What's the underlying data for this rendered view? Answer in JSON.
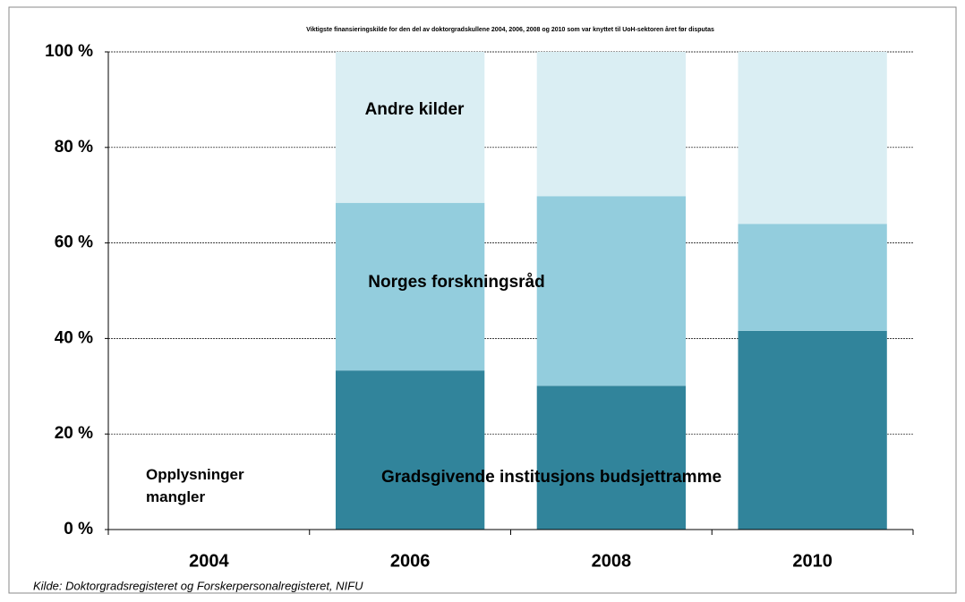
{
  "chart_data": {
    "type": "stacked_bar",
    "title": "Viktigste finansieringskilde for den del av doktorgradskullene 2004, 2006, 2008 og 2010 som var knyttet til UoH-sektoren året før disputas",
    "categories": [
      "2004",
      "2006",
      "2008",
      "2010"
    ],
    "series": [
      {
        "name": "Gradsgivende institusjons budsjettramme",
        "color": "#31849b",
        "values": [
          null,
          33.3,
          30.1,
          41.6
        ]
      },
      {
        "name": "Norges forskningsråd",
        "color": "#93cddd",
        "values": [
          null,
          35.1,
          39.7,
          22.4
        ]
      },
      {
        "name": "Andre kilder",
        "color": "#daeef3",
        "values": [
          null,
          31.6,
          30.2,
          36.0
        ]
      }
    ],
    "annotation": "Opplysninger mangler",
    "source": "Kilde: Doktorgradsregisteret og Forskerpersonalregisteret, NIFU",
    "ylim": [
      0,
      100
    ],
    "yticks": [
      {
        "value": 0,
        "label": "0 %"
      },
      {
        "value": 20,
        "label": "20 %"
      },
      {
        "value": 40,
        "label": "40 %"
      },
      {
        "value": 60,
        "label": "60 %"
      },
      {
        "value": 80,
        "label": "80 %"
      },
      {
        "value": 100,
        "label": "100 %"
      }
    ],
    "grid": true
  }
}
